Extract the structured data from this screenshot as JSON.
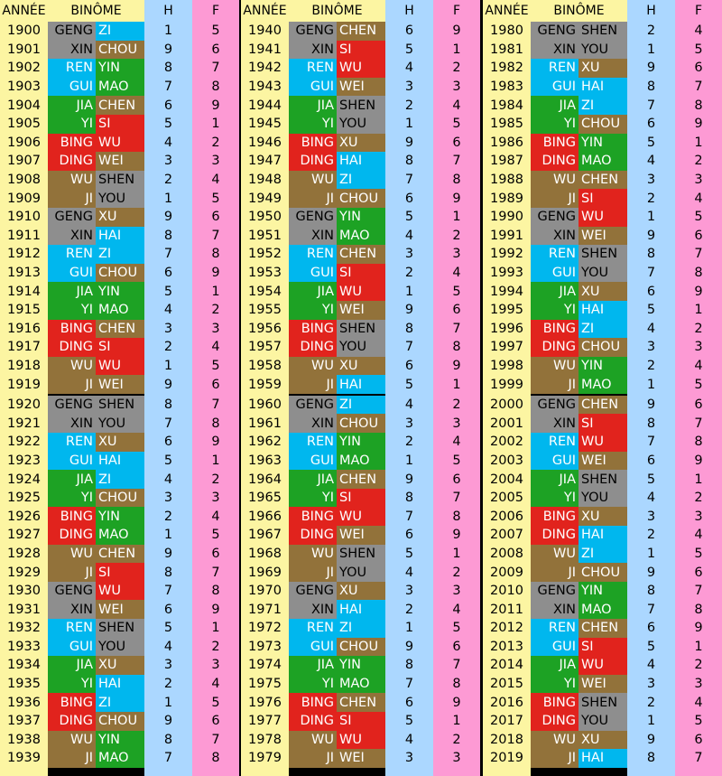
{
  "headers": {
    "year": "ANNÉE",
    "binome": "BINÔME",
    "h": "H",
    "f": "F"
  },
  "stem_colors": {
    "GENG": "#8e8e8e",
    "XIN": "#8e8e8e",
    "REN": "#00b7ee",
    "GUI": "#00b7ee",
    "JIA": "#1da224",
    "YI": "#1da224",
    "BING": "#e1231d",
    "DING": "#e1231d",
    "WU": "#92723a",
    "JI": "#92723a"
  },
  "branch_colors": {
    "ZI": "#00b7ee",
    "CHOU": "#92723a",
    "YIN": "#1da224",
    "MAO": "#1da224",
    "CHEN": "#92723a",
    "SI": "#e1231d",
    "WU": "#e1231d",
    "WEI": "#92723a",
    "SHEN": "#8e8e8e",
    "YOU": "#8e8e8e",
    "XU": "#92723a",
    "HAI": "#00b7ee"
  },
  "columns": [
    {
      "blocks": [
        [
          {
            "year": "1900",
            "stem": "GENG",
            "branch": "ZI",
            "h": "1",
            "f": "5"
          },
          {
            "year": "1901",
            "stem": "XIN",
            "branch": "CHOU",
            "h": "9",
            "f": "6"
          },
          {
            "year": "1902",
            "stem": "REN",
            "branch": "YIN",
            "h": "8",
            "f": "7"
          },
          {
            "year": "1903",
            "stem": "GUI",
            "branch": "MAO",
            "h": "7",
            "f": "8"
          },
          {
            "year": "1904",
            "stem": "JIA",
            "branch": "CHEN",
            "h": "6",
            "f": "9"
          },
          {
            "year": "1905",
            "stem": "YI",
            "branch": "SI",
            "h": "5",
            "f": "1"
          },
          {
            "year": "1906",
            "stem": "BING",
            "branch": "WU",
            "h": "4",
            "f": "2"
          },
          {
            "year": "1907",
            "stem": "DING",
            "branch": "WEI",
            "h": "3",
            "f": "3"
          },
          {
            "year": "1908",
            "stem": "WU",
            "branch": "SHEN",
            "h": "2",
            "f": "4"
          },
          {
            "year": "1909",
            "stem": "JI",
            "branch": "YOU",
            "h": "1",
            "f": "5"
          },
          {
            "year": "1910",
            "stem": "GENG",
            "branch": "XU",
            "h": "9",
            "f": "6"
          },
          {
            "year": "1911",
            "stem": "XIN",
            "branch": "HAI",
            "h": "8",
            "f": "7"
          },
          {
            "year": "1912",
            "stem": "REN",
            "branch": "ZI",
            "h": "7",
            "f": "8"
          },
          {
            "year": "1913",
            "stem": "GUI",
            "branch": "CHOU",
            "h": "6",
            "f": "9"
          },
          {
            "year": "1914",
            "stem": "JIA",
            "branch": "YIN",
            "h": "5",
            "f": "1"
          },
          {
            "year": "1915",
            "stem": "YI",
            "branch": "MAO",
            "h": "4",
            "f": "2"
          },
          {
            "year": "1916",
            "stem": "BING",
            "branch": "CHEN",
            "h": "3",
            "f": "3"
          },
          {
            "year": "1917",
            "stem": "DING",
            "branch": "SI",
            "h": "2",
            "f": "4"
          },
          {
            "year": "1918",
            "stem": "WU",
            "branch": "WU",
            "h": "1",
            "f": "5"
          },
          {
            "year": "1919",
            "stem": "JI",
            "branch": "WEI",
            "h": "9",
            "f": "6"
          }
        ],
        [
          {
            "year": "1920",
            "stem": "GENG",
            "branch": "SHEN",
            "h": "8",
            "f": "7"
          },
          {
            "year": "1921",
            "stem": "XIN",
            "branch": "YOU",
            "h": "7",
            "f": "8"
          },
          {
            "year": "1922",
            "stem": "REN",
            "branch": "XU",
            "h": "6",
            "f": "9"
          },
          {
            "year": "1923",
            "stem": "GUI",
            "branch": "HAI",
            "h": "5",
            "f": "1"
          },
          {
            "year": "1924",
            "stem": "JIA",
            "branch": "ZI",
            "h": "4",
            "f": "2"
          },
          {
            "year": "1925",
            "stem": "YI",
            "branch": "CHOU",
            "h": "3",
            "f": "3"
          },
          {
            "year": "1926",
            "stem": "BING",
            "branch": "YIN",
            "h": "2",
            "f": "4"
          },
          {
            "year": "1927",
            "stem": "DING",
            "branch": "MAO",
            "h": "1",
            "f": "5"
          },
          {
            "year": "1928",
            "stem": "WU",
            "branch": "CHEN",
            "h": "9",
            "f": "6"
          },
          {
            "year": "1929",
            "stem": "JI",
            "branch": "SI",
            "h": "8",
            "f": "7"
          },
          {
            "year": "1930",
            "stem": "GENG",
            "branch": "WU",
            "h": "7",
            "f": "8"
          },
          {
            "year": "1931",
            "stem": "XIN",
            "branch": "WEI",
            "h": "6",
            "f": "9"
          },
          {
            "year": "1932",
            "stem": "REN",
            "branch": "SHEN",
            "h": "5",
            "f": "1"
          },
          {
            "year": "1933",
            "stem": "GUI",
            "branch": "YOU",
            "h": "4",
            "f": "2"
          },
          {
            "year": "1934",
            "stem": "JIA",
            "branch": "XU",
            "h": "3",
            "f": "3"
          },
          {
            "year": "1935",
            "stem": "YI",
            "branch": "HAI",
            "h": "2",
            "f": "4"
          },
          {
            "year": "1936",
            "stem": "BING",
            "branch": "ZI",
            "h": "1",
            "f": "5"
          },
          {
            "year": "1937",
            "stem": "DING",
            "branch": "CHOU",
            "h": "9",
            "f": "6"
          },
          {
            "year": "1938",
            "stem": "WU",
            "branch": "YIN",
            "h": "8",
            "f": "7"
          },
          {
            "year": "1939",
            "stem": "JI",
            "branch": "MAO",
            "h": "7",
            "f": "8"
          }
        ]
      ]
    },
    {
      "blocks": [
        [
          {
            "year": "1940",
            "stem": "GENG",
            "branch": "CHEN",
            "h": "6",
            "f": "9"
          },
          {
            "year": "1941",
            "stem": "XIN",
            "branch": "SI",
            "h": "5",
            "f": "1"
          },
          {
            "year": "1942",
            "stem": "REN",
            "branch": "WU",
            "h": "4",
            "f": "2"
          },
          {
            "year": "1943",
            "stem": "GUI",
            "branch": "WEI",
            "h": "3",
            "f": "3"
          },
          {
            "year": "1944",
            "stem": "JIA",
            "branch": "SHEN",
            "h": "2",
            "f": "4"
          },
          {
            "year": "1945",
            "stem": "YI",
            "branch": "YOU",
            "h": "1",
            "f": "5"
          },
          {
            "year": "1946",
            "stem": "BING",
            "branch": "XU",
            "h": "9",
            "f": "6"
          },
          {
            "year": "1947",
            "stem": "DING",
            "branch": "HAI",
            "h": "8",
            "f": "7"
          },
          {
            "year": "1948",
            "stem": "WU",
            "branch": "ZI",
            "h": "7",
            "f": "8"
          },
          {
            "year": "1949",
            "stem": "JI",
            "branch": "CHOU",
            "h": "6",
            "f": "9"
          },
          {
            "year": "1950",
            "stem": "GENG",
            "branch": "YIN",
            "h": "5",
            "f": "1"
          },
          {
            "year": "1951",
            "stem": "XIN",
            "branch": "MAO",
            "h": "4",
            "f": "2"
          },
          {
            "year": "1952",
            "stem": "REN",
            "branch": "CHEN",
            "h": "3",
            "f": "3"
          },
          {
            "year": "1953",
            "stem": "GUI",
            "branch": "SI",
            "h": "2",
            "f": "4"
          },
          {
            "year": "1954",
            "stem": "JIA",
            "branch": "WU",
            "h": "1",
            "f": "5"
          },
          {
            "year": "1955",
            "stem": "YI",
            "branch": "WEI",
            "h": "9",
            "f": "6"
          },
          {
            "year": "1956",
            "stem": "BING",
            "branch": "SHEN",
            "h": "8",
            "f": "7"
          },
          {
            "year": "1957",
            "stem": "DING",
            "branch": "YOU",
            "h": "7",
            "f": "8"
          },
          {
            "year": "1958",
            "stem": "WU",
            "branch": "XU",
            "h": "6",
            "f": "9"
          },
          {
            "year": "1959",
            "stem": "JI",
            "branch": "HAI",
            "h": "5",
            "f": "1"
          }
        ],
        [
          {
            "year": "1960",
            "stem": "GENG",
            "branch": "ZI",
            "h": "4",
            "f": "2"
          },
          {
            "year": "1961",
            "stem": "XIN",
            "branch": "CHOU",
            "h": "3",
            "f": "3"
          },
          {
            "year": "1962",
            "stem": "REN",
            "branch": "YIN",
            "h": "2",
            "f": "4"
          },
          {
            "year": "1963",
            "stem": "GUI",
            "branch": "MAO",
            "h": "1",
            "f": "5"
          },
          {
            "year": "1964",
            "stem": "JIA",
            "branch": "CHEN",
            "h": "9",
            "f": "6"
          },
          {
            "year": "1965",
            "stem": "YI",
            "branch": "SI",
            "h": "8",
            "f": "7"
          },
          {
            "year": "1966",
            "stem": "BING",
            "branch": "WU",
            "h": "7",
            "f": "8"
          },
          {
            "year": "1967",
            "stem": "DING",
            "branch": "WEI",
            "h": "6",
            "f": "9"
          },
          {
            "year": "1968",
            "stem": "WU",
            "branch": "SHEN",
            "h": "5",
            "f": "1"
          },
          {
            "year": "1969",
            "stem": "JI",
            "branch": "YOU",
            "h": "4",
            "f": "2"
          },
          {
            "year": "1970",
            "stem": "GENG",
            "branch": "XU",
            "h": "3",
            "f": "3"
          },
          {
            "year": "1971",
            "stem": "XIN",
            "branch": "HAI",
            "h": "2",
            "f": "4"
          },
          {
            "year": "1972",
            "stem": "REN",
            "branch": "ZI",
            "h": "1",
            "f": "5"
          },
          {
            "year": "1973",
            "stem": "GUI",
            "branch": "CHOU",
            "h": "9",
            "f": "6"
          },
          {
            "year": "1974",
            "stem": "JIA",
            "branch": "YIN",
            "h": "8",
            "f": "7"
          },
          {
            "year": "1975",
            "stem": "YI",
            "branch": "MAO",
            "h": "7",
            "f": "8"
          },
          {
            "year": "1976",
            "stem": "BING",
            "branch": "CHEN",
            "h": "6",
            "f": "9"
          },
          {
            "year": "1977",
            "stem": "DING",
            "branch": "SI",
            "h": "5",
            "f": "1"
          },
          {
            "year": "1978",
            "stem": "WU",
            "branch": "WU",
            "h": "4",
            "f": "2"
          },
          {
            "year": "1979",
            "stem": "JI",
            "branch": "WEI",
            "h": "3",
            "f": "3"
          }
        ]
      ]
    },
    {
      "blocks": [
        [
          {
            "year": "1980",
            "stem": "GENG",
            "branch": "SHEN",
            "h": "2",
            "f": "4"
          },
          {
            "year": "1981",
            "stem": "XIN",
            "branch": "YOU",
            "h": "1",
            "f": "5"
          },
          {
            "year": "1982",
            "stem": "REN",
            "branch": "XU",
            "h": "9",
            "f": "6"
          },
          {
            "year": "1983",
            "stem": "GUI",
            "branch": "HAI",
            "h": "8",
            "f": "7"
          },
          {
            "year": "1984",
            "stem": "JIA",
            "branch": "ZI",
            "h": "7",
            "f": "8"
          },
          {
            "year": "1985",
            "stem": "YI",
            "branch": "CHOU",
            "h": "6",
            "f": "9"
          },
          {
            "year": "1986",
            "stem": "BING",
            "branch": "YIN",
            "h": "5",
            "f": "1"
          },
          {
            "year": "1987",
            "stem": "DING",
            "branch": "MAO",
            "h": "4",
            "f": "2"
          },
          {
            "year": "1988",
            "stem": "WU",
            "branch": "CHEN",
            "h": "3",
            "f": "3"
          },
          {
            "year": "1989",
            "stem": "JI",
            "branch": "SI",
            "h": "2",
            "f": "4"
          },
          {
            "year": "1990",
            "stem": "GENG",
            "branch": "WU",
            "h": "1",
            "f": "5"
          },
          {
            "year": "1991",
            "stem": "XIN",
            "branch": "WEI",
            "h": "9",
            "f": "6"
          },
          {
            "year": "1992",
            "stem": "REN",
            "branch": "SHEN",
            "h": "8",
            "f": "7"
          },
          {
            "year": "1993",
            "stem": "GUI",
            "branch": "YOU",
            "h": "7",
            "f": "8"
          },
          {
            "year": "1994",
            "stem": "JIA",
            "branch": "XU",
            "h": "6",
            "f": "9"
          },
          {
            "year": "1995",
            "stem": "YI",
            "branch": "HAI",
            "h": "5",
            "f": "1"
          },
          {
            "year": "1996",
            "stem": "BING",
            "branch": "ZI",
            "h": "4",
            "f": "2"
          },
          {
            "year": "1997",
            "stem": "DING",
            "branch": "CHOU",
            "h": "3",
            "f": "3"
          },
          {
            "year": "1998",
            "stem": "WU",
            "branch": "YIN",
            "h": "2",
            "f": "4"
          },
          {
            "year": "1999",
            "stem": "JI",
            "branch": "MAO",
            "h": "1",
            "f": "5"
          }
        ],
        [
          {
            "year": "2000",
            "stem": "GENG",
            "branch": "CHEN",
            "h": "9",
            "f": "6"
          },
          {
            "year": "2001",
            "stem": "XIN",
            "branch": "SI",
            "h": "8",
            "f": "7"
          },
          {
            "year": "2002",
            "stem": "REN",
            "branch": "WU",
            "h": "7",
            "f": "8"
          },
          {
            "year": "2003",
            "stem": "GUI",
            "branch": "WEI",
            "h": "6",
            "f": "9"
          },
          {
            "year": "2004",
            "stem": "JIA",
            "branch": "SHEN",
            "h": "5",
            "f": "1"
          },
          {
            "year": "2005",
            "stem": "YI",
            "branch": "YOU",
            "h": "4",
            "f": "2"
          },
          {
            "year": "2006",
            "stem": "BING",
            "branch": "XU",
            "h": "3",
            "f": "3"
          },
          {
            "year": "2007",
            "stem": "DING",
            "branch": "HAI",
            "h": "2",
            "f": "4"
          },
          {
            "year": "2008",
            "stem": "WU",
            "branch": "ZI",
            "h": "1",
            "f": "5"
          },
          {
            "year": "2009",
            "stem": "JI",
            "branch": "CHOU",
            "h": "9",
            "f": "6"
          },
          {
            "year": "2010",
            "stem": "GENG",
            "branch": "YIN",
            "h": "8",
            "f": "7"
          },
          {
            "year": "2011",
            "stem": "XIN",
            "branch": "MAO",
            "h": "7",
            "f": "8"
          },
          {
            "year": "2012",
            "stem": "REN",
            "branch": "CHEN",
            "h": "6",
            "f": "9"
          },
          {
            "year": "2013",
            "stem": "GUI",
            "branch": "SI",
            "h": "5",
            "f": "1"
          },
          {
            "year": "2014",
            "stem": "JIA",
            "branch": "WU",
            "h": "4",
            "f": "2"
          },
          {
            "year": "2015",
            "stem": "YI",
            "branch": "WEI",
            "h": "3",
            "f": "3"
          },
          {
            "year": "2016",
            "stem": "BING",
            "branch": "SHEN",
            "h": "2",
            "f": "4"
          },
          {
            "year": "2017",
            "stem": "DING",
            "branch": "YOU",
            "h": "1",
            "f": "5"
          },
          {
            "year": "2018",
            "stem": "WU",
            "branch": "XU",
            "h": "9",
            "f": "6"
          },
          {
            "year": "2019",
            "stem": "JI",
            "branch": "HAI",
            "h": "8",
            "f": "7"
          }
        ]
      ]
    }
  ]
}
